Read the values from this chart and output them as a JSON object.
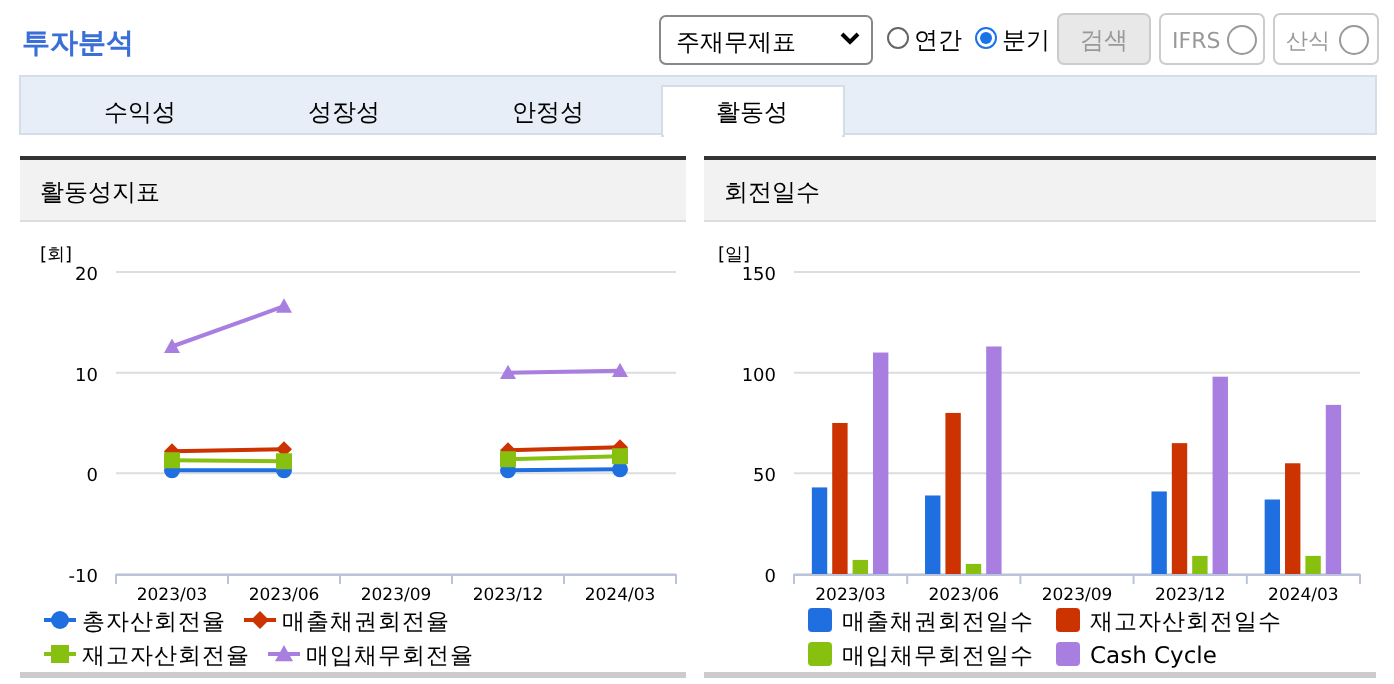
{
  "chart_data": [
    {
      "type": "other",
      "title": "투자분석",
      "annotations": [
        "주재무제표",
        "연간",
        "분기",
        "검색",
        "IFRS",
        "산식",
        "수익성",
        "성장성",
        "안정성",
        "활동성"
      ]
    },
    {
      "type": "line",
      "title": "활동성지표",
      "ylabel": "[회]",
      "categories": [
        "2023/03",
        "2023/06",
        "2023/09",
        "2023/12",
        "2024/03"
      ],
      "ylim": [
        -10,
        20
      ],
      "yticks": [
        -10,
        0,
        10,
        20
      ],
      "grid": "y",
      "legend": "bottom",
      "series": [
        {
          "name": "총자산회전율",
          "color": "#1f6fe0",
          "marker": "circle",
          "values": [
            0.3,
            0.3,
            null,
            0.3,
            0.4
          ]
        },
        {
          "name": "매출채권회전율",
          "color": "#cc3300",
          "marker": "diamond",
          "values": [
            2.2,
            2.4,
            null,
            2.3,
            2.6
          ]
        },
        {
          "name": "재고자산회전율",
          "color": "#88c010",
          "marker": "square",
          "values": [
            1.3,
            1.2,
            null,
            1.4,
            1.7
          ]
        },
        {
          "name": "매입채무회전율",
          "color": "#a87ee0",
          "marker": "triangle",
          "values": [
            12.6,
            16.6,
            null,
            10.0,
            10.2
          ]
        }
      ]
    },
    {
      "type": "bar",
      "title": "회전일수",
      "ylabel": "[일]",
      "categories": [
        "2023/03",
        "2023/06",
        "2023/09",
        "2023/12",
        "2024/03"
      ],
      "ylim": [
        0,
        150
      ],
      "yticks": [
        0,
        50,
        100,
        150
      ],
      "grid": "y",
      "legend": "bottom",
      "series": [
        {
          "name": "매출채권회전일수",
          "color": "#1f6fe0",
          "values": [
            43,
            39,
            null,
            41,
            37
          ]
        },
        {
          "name": "재고자산회전일수",
          "color": "#cc3300",
          "values": [
            75,
            80,
            null,
            65,
            55
          ]
        },
        {
          "name": "매입채무회전일수",
          "color": "#88c010",
          "values": [
            7,
            5,
            null,
            9,
            9
          ]
        },
        {
          "name": "Cash Cycle",
          "color": "#a87ee0",
          "values": [
            110,
            113,
            null,
            98,
            84
          ]
        }
      ]
    }
  ]
}
